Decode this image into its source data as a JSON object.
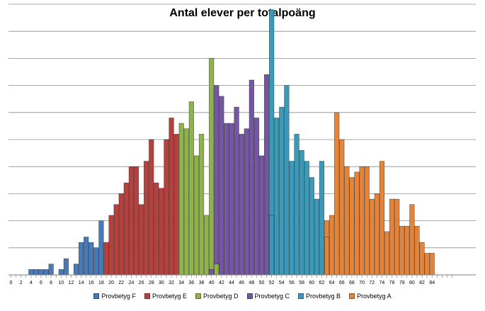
{
  "chart_data": {
    "type": "bar",
    "title": "Antal elever per totalpoäng",
    "xlabel": "",
    "ylabel": "",
    "x_tick_labels": [
      "0",
      "2",
      "4",
      "6",
      "8",
      "10",
      "12",
      "14",
      "16",
      "18",
      "20",
      "22",
      "24",
      "26",
      "28",
      "30",
      "32",
      "34",
      "36",
      "38",
      "40",
      "42",
      "44",
      "46",
      "48",
      "50",
      "52",
      "54",
      "56",
      "58",
      "60",
      "62",
      "64",
      "66",
      "68",
      "70",
      "72",
      "74",
      "76",
      "78",
      "80",
      "82",
      "84"
    ],
    "x": [
      4,
      5,
      6,
      7,
      8,
      10,
      11,
      13,
      14,
      15,
      16,
      17,
      18,
      19,
      20,
      21,
      22,
      23,
      24,
      25,
      26,
      27,
      28,
      29,
      30,
      31,
      32,
      33,
      34,
      35,
      36,
      37,
      38,
      39,
      40,
      41,
      42,
      43,
      44,
      45,
      46,
      47,
      48,
      49,
      50,
      51,
      52,
      53,
      54,
      55,
      56,
      57,
      58,
      59,
      60,
      61,
      62,
      63,
      64,
      65,
      66,
      67,
      68,
      69,
      70,
      71,
      72,
      73,
      74,
      75,
      76,
      77,
      78,
      79,
      80,
      81,
      82,
      83,
      84
    ],
    "values": [
      1,
      1,
      1,
      1,
      2,
      1,
      3,
      2,
      6,
      7,
      6,
      5,
      10,
      6,
      11,
      13,
      15,
      17,
      20,
      20,
      13,
      21,
      25,
      17,
      16,
      25,
      29,
      26,
      28,
      27,
      32,
      22,
      26,
      11,
      40,
      35,
      33,
      28,
      28,
      31,
      26,
      27,
      36,
      29,
      22,
      37,
      49,
      29,
      31,
      35,
      21,
      26,
      23,
      21,
      18,
      14,
      21,
      10,
      11,
      30,
      25,
      20,
      18,
      19,
      20,
      20,
      14,
      15,
      21,
      8,
      14,
      14,
      9,
      9,
      13,
      9,
      6,
      4,
      4
    ],
    "grade_for_point": [
      "F",
      "F",
      "F",
      "F",
      "F",
      "F",
      "F",
      "F",
      "F",
      "F",
      "F",
      "F",
      "F",
      "E",
      "E",
      "E",
      "E",
      "E",
      "E",
      "E",
      "E",
      "E",
      "E",
      "E",
      "E",
      "E",
      "E",
      "E",
      "D",
      "D",
      "D",
      "D",
      "D",
      "D",
      "D",
      "C",
      "C",
      "C",
      "C",
      "C",
      "C",
      "C",
      "C",
      "C",
      "C",
      "C",
      "B",
      "B",
      "B",
      "B",
      "B",
      "B",
      "B",
      "B",
      "B",
      "B",
      "B",
      "A",
      "A",
      "A",
      "A",
      "A",
      "A",
      "A",
      "A",
      "A",
      "A",
      "A",
      "A",
      "A",
      "A",
      "A",
      "A",
      "A",
      "A",
      "A",
      "A",
      "A",
      "A"
    ],
    "overlay_bars": [
      {
        "x": 40,
        "value": 1,
        "grade": "C"
      },
      {
        "x": 41,
        "value": 2,
        "grade": "D"
      },
      {
        "x": 52,
        "value": 11,
        "grade": "B"
      },
      {
        "x": 63,
        "value": 7,
        "grade": "A"
      }
    ],
    "series": [
      {
        "key": "F",
        "name": "Provbetyg F",
        "color": "#4a7ab5"
      },
      {
        "key": "E",
        "name": "Provbetyg E",
        "color": "#b5413f"
      },
      {
        "key": "D",
        "name": "Provbetyg D",
        "color": "#8fb24f"
      },
      {
        "key": "C",
        "name": "Provbetyg C",
        "color": "#7457a0"
      },
      {
        "key": "B",
        "name": "Provbetyg B",
        "color": "#3a9ab8"
      },
      {
        "key": "A",
        "name": "Provbetyg A",
        "color": "#e3843a"
      }
    ],
    "ylim": [
      0,
      50
    ],
    "xlim": [
      0,
      88
    ],
    "y_gridlines": [
      5,
      10,
      15,
      20,
      25,
      30,
      35,
      40,
      45,
      50
    ],
    "grid": true,
    "y_tick_labels_shown": false,
    "legend": "bottom"
  }
}
